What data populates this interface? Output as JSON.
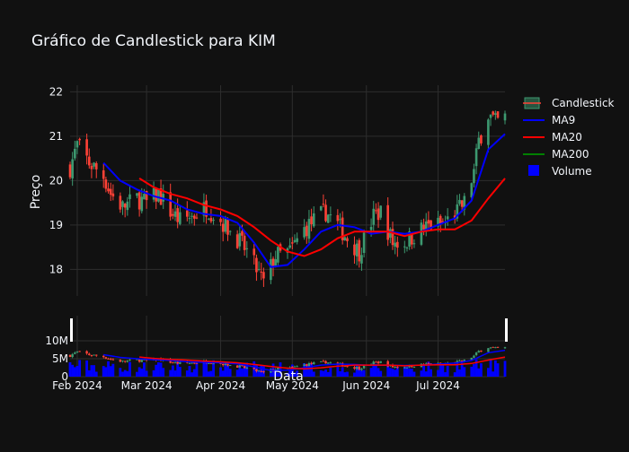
{
  "chart_data": {
    "type": "candlestick",
    "title": "Gráfico de Candlestick para KIM",
    "ylabel": "Preço",
    "xlabel": "Data",
    "ylim": [
      17.4,
      22.15
    ],
    "y_ticks": [
      "18",
      "19",
      "20",
      "21",
      "22"
    ],
    "x_ticks": [
      "Feb 2024",
      "Mar 2024",
      "Apr 2024",
      "May 2024",
      "Jun 2024",
      "Jul 2024"
    ],
    "x_tick_positions": [
      "2024-02-01",
      "2024-03-01",
      "2024-04-01",
      "2024-05-01",
      "2024-06-01",
      "2024-07-01"
    ],
    "x_range": [
      "2024-01-29",
      "2024-07-29"
    ],
    "volume_ticks": [
      "0",
      "5M",
      "10M"
    ],
    "volume_range": [
      0,
      12000000
    ],
    "grid": true,
    "legend_position": "right",
    "legend": [
      {
        "name": "Candlestick",
        "kind": "candle",
        "color": "#3d9970"
      },
      {
        "name": "MA9",
        "kind": "line",
        "color": "#0000ff"
      },
      {
        "name": "MA20",
        "kind": "line",
        "color": "#ff0000"
      },
      {
        "name": "MA200",
        "kind": "line",
        "color": "#008000"
      },
      {
        "name": "Volume",
        "kind": "box",
        "color": "#0000ff"
      }
    ],
    "colors": {
      "increasing": "#3d9970",
      "decreasing": "#ff4136",
      "ma9": "#0000ff",
      "ma20": "#ff0000",
      "volume": "#0000ff",
      "background": "#111111",
      "grid": "#2e2e2e",
      "text": "#f2f5fa"
    },
    "close_anchors": [
      [
        "2024-01-29",
        20.3
      ],
      [
        "2024-02-01",
        20.8
      ],
      [
        "2024-02-06",
        20.4
      ],
      [
        "2024-02-12",
        20.1
      ],
      [
        "2024-02-15",
        19.7
      ],
      [
        "2024-02-20",
        19.4
      ],
      [
        "2024-02-26",
        19.6
      ],
      [
        "2024-03-01",
        19.5
      ],
      [
        "2024-03-06",
        19.7
      ],
      [
        "2024-03-11",
        19.3
      ],
      [
        "2024-03-15",
        19.1
      ],
      [
        "2024-03-20",
        19.2
      ],
      [
        "2024-03-26",
        19.4
      ],
      [
        "2024-04-01",
        19.1
      ],
      [
        "2024-04-08",
        18.7
      ],
      [
        "2024-04-12",
        18.4
      ],
      [
        "2024-04-16",
        18.0
      ],
      [
        "2024-04-19",
        17.7
      ],
      [
        "2024-04-24",
        18.3
      ],
      [
        "2024-04-30",
        18.4
      ],
      [
        "2024-05-06",
        18.9
      ],
      [
        "2024-05-10",
        19.1
      ],
      [
        "2024-05-15",
        19.3
      ],
      [
        "2024-05-20",
        19.0
      ],
      [
        "2024-05-24",
        18.7
      ],
      [
        "2024-05-29",
        18.4
      ],
      [
        "2024-06-04",
        19.2
      ],
      [
        "2024-06-07",
        19.3
      ],
      [
        "2024-06-12",
        18.6
      ],
      [
        "2024-06-17",
        18.6
      ],
      [
        "2024-06-24",
        18.9
      ],
      [
        "2024-06-28",
        19.0
      ],
      [
        "2024-07-03",
        19.0
      ],
      [
        "2024-07-09",
        19.3
      ],
      [
        "2024-07-12",
        19.5
      ],
      [
        "2024-07-16",
        20.2
      ],
      [
        "2024-07-18",
        20.9
      ],
      [
        "2024-07-22",
        21.5
      ],
      [
        "2024-07-25",
        21.3
      ],
      [
        "2024-07-29",
        21.4
      ]
    ],
    "ma9_points": [
      [
        "2024-02-12",
        20.4
      ],
      [
        "2024-02-19",
        20.0
      ],
      [
        "2024-02-26",
        19.8
      ],
      [
        "2024-03-04",
        19.65
      ],
      [
        "2024-03-11",
        19.55
      ],
      [
        "2024-03-18",
        19.35
      ],
      [
        "2024-03-25",
        19.25
      ],
      [
        "2024-04-01",
        19.2
      ],
      [
        "2024-04-08",
        19.05
      ],
      [
        "2024-04-15",
        18.6
      ],
      [
        "2024-04-22",
        18.05
      ],
      [
        "2024-04-29",
        18.1
      ],
      [
        "2024-05-06",
        18.45
      ],
      [
        "2024-05-13",
        18.85
      ],
      [
        "2024-05-20",
        19.0
      ],
      [
        "2024-05-27",
        18.95
      ],
      [
        "2024-06-03",
        18.8
      ],
      [
        "2024-06-10",
        18.85
      ],
      [
        "2024-06-17",
        18.8
      ],
      [
        "2024-06-24",
        18.85
      ],
      [
        "2024-07-01",
        19.0
      ],
      [
        "2024-07-08",
        19.15
      ],
      [
        "2024-07-15",
        19.55
      ],
      [
        "2024-07-22",
        20.7
      ],
      [
        "2024-07-29",
        21.05
      ]
    ],
    "ma20_points": [
      [
        "2024-02-27",
        20.05
      ],
      [
        "2024-03-04",
        19.85
      ],
      [
        "2024-03-11",
        19.7
      ],
      [
        "2024-03-18",
        19.6
      ],
      [
        "2024-03-25",
        19.45
      ],
      [
        "2024-04-01",
        19.35
      ],
      [
        "2024-04-08",
        19.2
      ],
      [
        "2024-04-15",
        18.95
      ],
      [
        "2024-04-22",
        18.65
      ],
      [
        "2024-04-29",
        18.4
      ],
      [
        "2024-05-06",
        18.3
      ],
      [
        "2024-05-13",
        18.45
      ],
      [
        "2024-05-20",
        18.7
      ],
      [
        "2024-05-27",
        18.85
      ],
      [
        "2024-06-03",
        18.85
      ],
      [
        "2024-06-10",
        18.85
      ],
      [
        "2024-06-17",
        18.75
      ],
      [
        "2024-06-24",
        18.85
      ],
      [
        "2024-07-01",
        18.9
      ],
      [
        "2024-07-08",
        18.9
      ],
      [
        "2024-07-15",
        19.1
      ],
      [
        "2024-07-22",
        19.6
      ],
      [
        "2024-07-29",
        20.05
      ]
    ],
    "volume_levels": [
      [
        "2024-01-29",
        3600000
      ],
      [
        "2024-03-01",
        3000000
      ],
      [
        "2024-04-01",
        3300000
      ],
      [
        "2024-05-01",
        2900000
      ],
      [
        "2024-06-01",
        2800000
      ],
      [
        "2024-07-01",
        3100000
      ],
      [
        "2024-07-29",
        3800000
      ]
    ]
  }
}
